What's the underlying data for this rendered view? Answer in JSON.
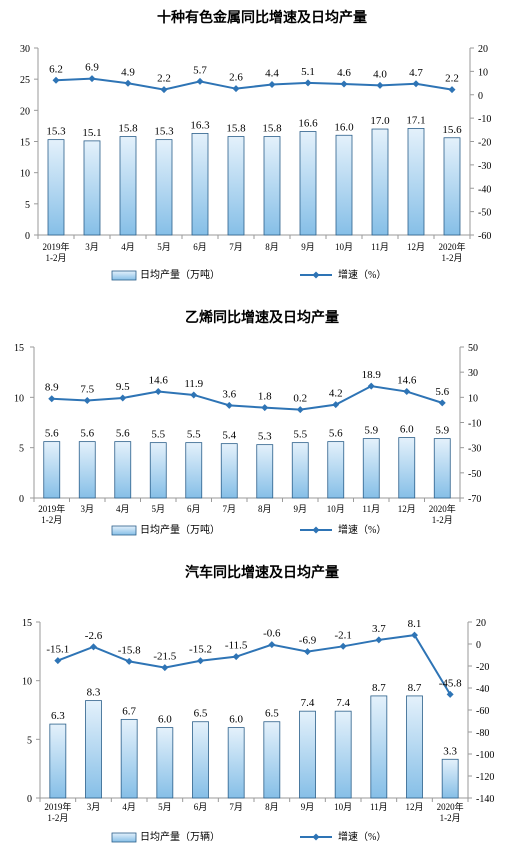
{
  "colors": {
    "bar_fill_top": "#e4f1fb",
    "bar_fill_bottom": "#86bfe7",
    "bar_stroke": "#2b5f8a",
    "line": "#2e74b5",
    "axis": "#9a9a9a",
    "text": "#000000"
  },
  "charts": [
    {
      "title": "十种有色金属同比增速及日均产量",
      "legend": {
        "bar": "日均产量（万吨）",
        "line": "增速（%）"
      },
      "categories": [
        "2019年\n1-2月",
        "3月",
        "4月",
        "5月",
        "6月",
        "7月",
        "8月",
        "9月",
        "10月",
        "11月",
        "12月",
        "2020年\n1-2月"
      ],
      "bar_values": [
        15.3,
        15.1,
        15.8,
        15.3,
        16.3,
        15.8,
        15.8,
        16.6,
        16.0,
        17.0,
        17.1,
        15.6
      ],
      "line_values": [
        6.2,
        6.9,
        4.9,
        2.2,
        5.7,
        2.6,
        4.4,
        5.1,
        4.6,
        4.0,
        4.7,
        2.2
      ],
      "left_axis": {
        "min": 0,
        "max": 30,
        "ticks": [
          0,
          5,
          10,
          15,
          20,
          25,
          30
        ]
      },
      "right_axis": {
        "min": -60,
        "max": 20,
        "ticks": [
          -60,
          -50,
          -40,
          -30,
          -20,
          -10,
          0,
          10,
          20
        ]
      }
    },
    {
      "title": "乙烯同比增速及日均产量",
      "legend": {
        "bar": "日均产量（万吨）",
        "line": "增速（%）"
      },
      "categories": [
        "2019年\n1-2月",
        "3月",
        "4月",
        "5月",
        "6月",
        "7月",
        "8月",
        "9月",
        "10月",
        "11月",
        "12月",
        "2020年\n1-2月"
      ],
      "bar_values": [
        5.6,
        5.6,
        5.6,
        5.5,
        5.5,
        5.4,
        5.3,
        5.5,
        5.6,
        5.9,
        6.0,
        5.9
      ],
      "line_values": [
        8.9,
        7.5,
        9.5,
        14.6,
        11.9,
        3.6,
        1.8,
        0.2,
        4.2,
        18.9,
        14.6,
        5.6
      ],
      "left_axis": {
        "min": 0,
        "max": 15,
        "ticks": [
          0,
          5,
          10,
          15
        ]
      },
      "right_axis": {
        "min": -70,
        "max": 50,
        "ticks": [
          -70,
          -50,
          -30,
          -10,
          10,
          30,
          50
        ]
      }
    },
    {
      "title": "汽车同比增速及日均产量",
      "legend": {
        "bar": "日均产量（万辆）",
        "line": "增速（%）"
      },
      "categories": [
        "2019年\n1-2月",
        "3月",
        "4月",
        "5月",
        "6月",
        "7月",
        "8月",
        "9月",
        "10月",
        "11月",
        "12月",
        "2020年\n1-2月"
      ],
      "bar_values": [
        6.3,
        8.3,
        6.7,
        6.0,
        6.5,
        6.0,
        6.5,
        7.4,
        7.4,
        8.7,
        8.7,
        3.3
      ],
      "line_values": [
        -15.1,
        -2.6,
        -15.8,
        -21.5,
        -15.2,
        -11.5,
        -0.6,
        -6.9,
        -2.1,
        3.7,
        8.1,
        -45.8
      ],
      "left_axis": {
        "min": 0,
        "max": 15,
        "ticks": [
          0,
          5,
          10,
          15
        ]
      },
      "right_axis": {
        "min": -140,
        "max": 20,
        "ticks": [
          -140,
          -120,
          -100,
          -80,
          -60,
          -40,
          -20,
          0,
          20
        ]
      }
    }
  ],
  "chart_data": [
    {
      "type": "bar",
      "title": "十种有色金属同比增速及日均产量",
      "categories": [
        "2019年 1-2月",
        "3月",
        "4月",
        "5月",
        "6月",
        "7月",
        "8月",
        "9月",
        "10月",
        "11月",
        "12月",
        "2020年 1-2月"
      ],
      "series": [
        {
          "name": "日均产量（万吨）",
          "type": "bar",
          "axis": "left",
          "values": [
            15.3,
            15.1,
            15.8,
            15.3,
            16.3,
            15.8,
            15.8,
            16.6,
            16.0,
            17.0,
            17.1,
            15.6
          ]
        },
        {
          "name": "增速（%）",
          "type": "line",
          "axis": "right",
          "values": [
            6.2,
            6.9,
            4.9,
            2.2,
            5.7,
            2.6,
            4.4,
            5.1,
            4.6,
            4.0,
            4.7,
            2.2
          ]
        }
      ],
      "ylim_left": [
        0,
        30
      ],
      "ylim_right": [
        -60,
        20
      ],
      "legend_position": "bottom"
    },
    {
      "type": "bar",
      "title": "乙烯同比增速及日均产量",
      "categories": [
        "2019年 1-2月",
        "3月",
        "4月",
        "5月",
        "6月",
        "7月",
        "8月",
        "9月",
        "10月",
        "11月",
        "12月",
        "2020年 1-2月"
      ],
      "series": [
        {
          "name": "日均产量（万吨）",
          "type": "bar",
          "axis": "left",
          "values": [
            5.6,
            5.6,
            5.6,
            5.5,
            5.5,
            5.4,
            5.3,
            5.5,
            5.6,
            5.9,
            6.0,
            5.9
          ]
        },
        {
          "name": "增速（%）",
          "type": "line",
          "axis": "right",
          "values": [
            8.9,
            7.5,
            9.5,
            14.6,
            11.9,
            3.6,
            1.8,
            0.2,
            4.2,
            18.9,
            14.6,
            5.6
          ]
        }
      ],
      "ylim_left": [
        0,
        15
      ],
      "ylim_right": [
        -70,
        50
      ],
      "legend_position": "bottom"
    },
    {
      "type": "bar",
      "title": "汽车同比增速及日均产量",
      "categories": [
        "2019年 1-2月",
        "3月",
        "4月",
        "5月",
        "6月",
        "7月",
        "8月",
        "9月",
        "10月",
        "11月",
        "12月",
        "2020年 1-2月"
      ],
      "series": [
        {
          "name": "日均产量（万辆）",
          "type": "bar",
          "axis": "left",
          "values": [
            6.3,
            8.3,
            6.7,
            6.0,
            6.5,
            6.0,
            6.5,
            7.4,
            7.4,
            8.7,
            8.7,
            3.3
          ]
        },
        {
          "name": "增速（%）",
          "type": "line",
          "axis": "right",
          "values": [
            -15.1,
            -2.6,
            -15.8,
            -21.5,
            -15.2,
            -11.5,
            -0.6,
            -6.9,
            -2.1,
            3.7,
            8.1,
            -45.8
          ]
        }
      ],
      "ylim_left": [
        0,
        15
      ],
      "ylim_right": [
        -140,
        20
      ],
      "legend_position": "bottom"
    }
  ]
}
